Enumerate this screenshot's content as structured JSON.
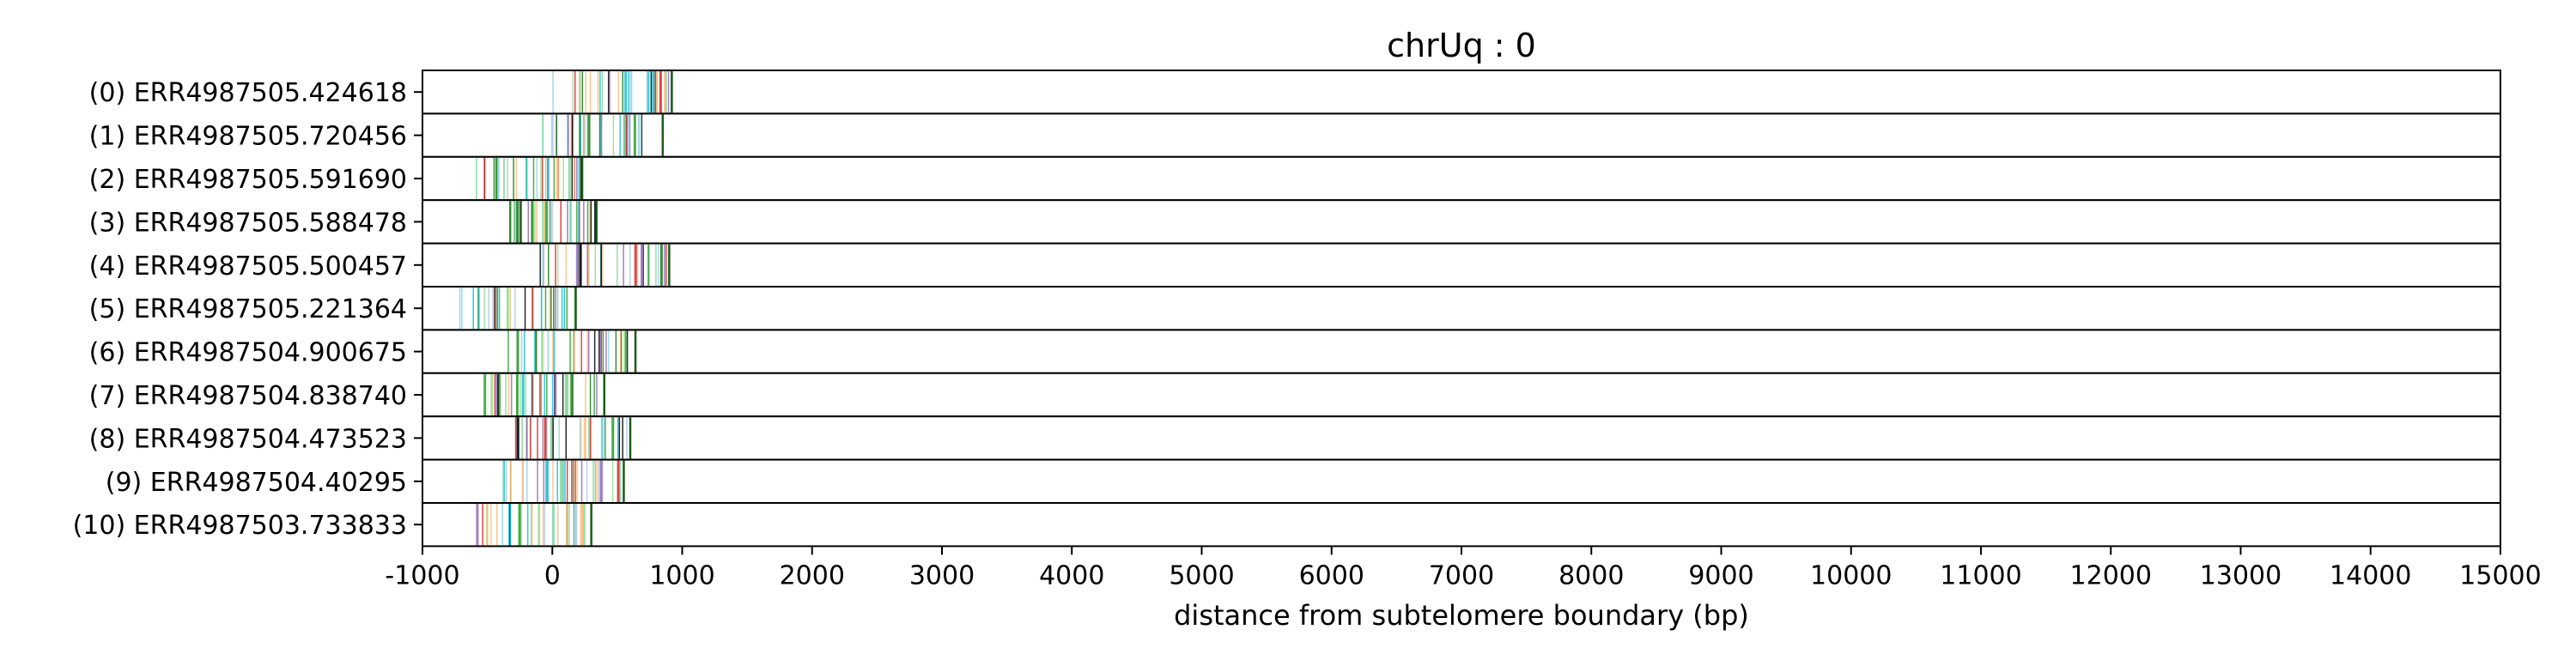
{
  "chart_data": {
    "type": "heatmap",
    "title": "chrUq : 0",
    "xlabel": "distance from subtelomere boundary (bp)",
    "ylabel": "",
    "xlim": [
      -1000,
      15000
    ],
    "xticks": [
      -1000,
      0,
      1000,
      2000,
      3000,
      4000,
      5000,
      6000,
      7000,
      8000,
      9000,
      10000,
      11000,
      12000,
      13000,
      14000,
      15000
    ],
    "xtick_labels": [
      "-1000",
      "0",
      "1000",
      "2000",
      "3000",
      "4000",
      "5000",
      "6000",
      "7000",
      "8000",
      "9000",
      "10000",
      "11000",
      "12000",
      "13000",
      "14000",
      "15000"
    ],
    "grid": "vertical dashed",
    "rows": [
      {
        "label": "(0) ERR4987505.424618",
        "start": 0,
        "end": 920
      },
      {
        "label": "(1) ERR4987505.720456",
        "start": -80,
        "end": 850
      },
      {
        "label": "(2) ERR4987505.591690",
        "start": -620,
        "end": 230
      },
      {
        "label": "(3) ERR4987505.588478",
        "start": -330,
        "end": 340
      },
      {
        "label": "(4) ERR4987505.500457",
        "start": -100,
        "end": 900
      },
      {
        "label": "(5) ERR4987505.221364",
        "start": -720,
        "end": 180
      },
      {
        "label": "(6) ERR4987504.900675",
        "start": -350,
        "end": 640
      },
      {
        "label": "(7) ERR4987504.838740",
        "start": -520,
        "end": 400
      },
      {
        "label": "(8) ERR4987504.473523",
        "start": -300,
        "end": 600
      },
      {
        "label": "(9) ERR4987504.40295",
        "start": -430,
        "end": 550
      },
      {
        "label": "(10) ERR4987503.733833",
        "start": -580,
        "end": 300
      }
    ],
    "mark_colors": [
      "#2ca02c",
      "#1a7a1a",
      "#7fd4a0",
      "#8fd3e8",
      "#ffbb78",
      "#9467bd",
      "#d62728",
      "#17becf",
      "#000000",
      "#98df8a",
      "#aec7e8"
    ]
  }
}
